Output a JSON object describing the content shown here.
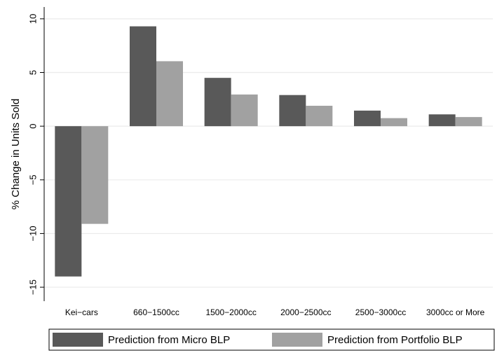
{
  "chart_data": {
    "type": "bar",
    "title": "",
    "xlabel": "",
    "ylabel": "% Change in Units Sold",
    "categories": [
      "Kei−cars",
      "660−1500cc",
      "1500−2000cc",
      "2000−2500cc",
      "2500−3000cc",
      "3000cc or More"
    ],
    "series": [
      {
        "name": "Prediction from Micro BLP",
        "values": [
          -14.0,
          9.3,
          4.5,
          2.9,
          1.45,
          1.1
        ],
        "color": "#595959"
      },
      {
        "name": "Prediction from Portfolio BLP",
        "values": [
          -9.1,
          6.05,
          2.95,
          1.9,
          0.75,
          0.85
        ],
        "color": "#a1a1a1"
      }
    ],
    "ylim": [
      -16.3,
      11.1
    ],
    "yticks": [
      10,
      5,
      0,
      -5,
      -10,
      -15
    ],
    "ytick_labels": [
      "10",
      "5",
      "0",
      "−5",
      "−10",
      "−15"
    ],
    "grid": true,
    "grid_color": "#ebebeb",
    "legend": "bottom"
  }
}
